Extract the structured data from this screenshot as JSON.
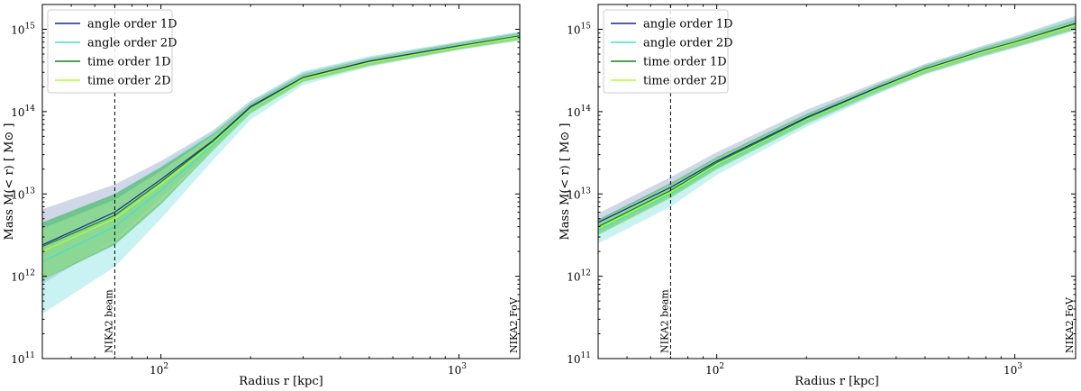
{
  "chart_data": [
    {
      "type": "line",
      "scale": {
        "x": "log",
        "y": "log"
      },
      "xlabel": "Radius r [kpc]",
      "ylabel": "Mass M(< r) [ M⊙ ]",
      "xlim": [
        40,
        1600
      ],
      "ylim": [
        100000000000.0,
        2000000000000000.0
      ],
      "x_ticks": [
        {
          "value": 100,
          "base": "10",
          "exp": "2"
        },
        {
          "value": 1000,
          "base": "10",
          "exp": "3"
        }
      ],
      "y_ticks": [
        {
          "value": 100000000000.0,
          "base": "10",
          "exp": "11"
        },
        {
          "value": 1000000000000.0,
          "base": "10",
          "exp": "12"
        },
        {
          "value": 10000000000000.0,
          "base": "10",
          "exp": "13"
        },
        {
          "value": 100000000000000.0,
          "base": "10",
          "exp": "14"
        },
        {
          "value": 1000000000000000.0,
          "base": "10",
          "exp": "15"
        }
      ],
      "legend": "top-left",
      "grid": false,
      "vlines": [
        {
          "x": 70,
          "label": "NIKA2 beam",
          "style": "dashed"
        },
        {
          "x": 1600,
          "label": "NIKA2 FoV",
          "style": "solid"
        }
      ],
      "series": [
        {
          "name": "angle order 1D",
          "color": "#1f1fa3",
          "band_color": "#8fa0c8",
          "x": [
            40,
            70,
            100,
            150,
            200,
            300,
            500,
            1000,
            1600
          ],
          "y": [
            2400000000000.0,
            6000000000000.0,
            15000000000000.0,
            45000000000000.0,
            115000000000000.0,
            260000000000000.0,
            410000000000000.0,
            630000000000000.0,
            830000000000000.0
          ],
          "upper": [
            6500000000000.0,
            13000000000000.0,
            25000000000000.0,
            60000000000000.0,
            135000000000000.0,
            300000000000000.0,
            460000000000000.0,
            700000000000000.0,
            930000000000000.0
          ],
          "lower": [
            800000000000.0,
            2800000000000.0,
            9000000000000.0,
            35000000000000.0,
            95000000000000.0,
            230000000000000.0,
            370000000000000.0,
            570000000000000.0,
            740000000000000.0
          ]
        },
        {
          "name": "angle order 2D",
          "color": "#40e0d0",
          "band_color": "#7fe0e0",
          "x": [
            40,
            70,
            100,
            150,
            200,
            300,
            500,
            1000,
            1600
          ],
          "y": [
            1500000000000.0,
            4000000000000.0,
            11000000000000.0,
            40000000000000.0,
            105000000000000.0,
            250000000000000.0,
            400000000000000.0,
            620000000000000.0,
            820000000000000.0
          ],
          "upper": [
            4500000000000.0,
            10000000000000.0,
            22000000000000.0,
            58000000000000.0,
            135000000000000.0,
            310000000000000.0,
            470000000000000.0,
            710000000000000.0,
            940000000000000.0
          ],
          "lower": [
            350000000000.0,
            1300000000000.0,
            5000000000000.0,
            26000000000000.0,
            80000000000000.0,
            210000000000000.0,
            350000000000000.0,
            560000000000000.0,
            720000000000000.0
          ]
        },
        {
          "name": "time order 1D",
          "color": "#1a7f1a",
          "band_color": "#3cb04a",
          "x": [
            40,
            70,
            100,
            150,
            200,
            300,
            500,
            1000,
            1600
          ],
          "y": [
            2300000000000.0,
            5500000000000.0,
            14000000000000.0,
            44000000000000.0,
            110000000000000.0,
            255000000000000.0,
            400000000000000.0,
            620000000000000.0,
            820000000000000.0
          ],
          "upper": [
            4500000000000.0,
            10000000000000.0,
            21000000000000.0,
            54000000000000.0,
            125000000000000.0,
            285000000000000.0,
            440000000000000.0,
            680000000000000.0,
            900000000000000.0
          ],
          "lower": [
            900000000000.0,
            2400000000000.0,
            7500000000000.0,
            34000000000000.0,
            95000000000000.0,
            230000000000000.0,
            360000000000000.0,
            570000000000000.0,
            750000000000000.0
          ]
        },
        {
          "name": "time order 2D",
          "color": "#adff2f",
          "band_color": "#b8f09a",
          "x": [
            40,
            70,
            100,
            150,
            200,
            300,
            500,
            1000,
            1600
          ],
          "y": [
            2000000000000.0,
            5000000000000.0,
            13000000000000.0,
            42000000000000.0,
            108000000000000.0,
            250000000000000.0,
            395000000000000.0,
            610000000000000.0,
            810000000000000.0
          ],
          "upper": [
            3800000000000.0,
            8500000000000.0,
            19000000000000.0,
            52000000000000.0,
            122000000000000.0,
            280000000000000.0,
            435000000000000.0,
            670000000000000.0,
            890000000000000.0
          ],
          "lower": [
            900000000000.0,
            2600000000000.0,
            8000000000000.0,
            34000000000000.0,
            94000000000000.0,
            225000000000000.0,
            355000000000000.0,
            560000000000000.0,
            730000000000000.0
          ]
        }
      ]
    },
    {
      "type": "line",
      "scale": {
        "x": "log",
        "y": "log"
      },
      "xlabel": "Radius r [kpc]",
      "ylabel": "Mass M(< r) [ M⊙ ]",
      "xlim": [
        40,
        1600
      ],
      "ylim": [
        100000000000.0,
        2000000000000000.0
      ],
      "x_ticks": [
        {
          "value": 100,
          "base": "10",
          "exp": "2"
        },
        {
          "value": 1000,
          "base": "10",
          "exp": "3"
        }
      ],
      "y_ticks": [
        {
          "value": 100000000000.0,
          "base": "10",
          "exp": "11"
        },
        {
          "value": 1000000000000.0,
          "base": "10",
          "exp": "12"
        },
        {
          "value": 10000000000000.0,
          "base": "10",
          "exp": "13"
        },
        {
          "value": 100000000000000.0,
          "base": "10",
          "exp": "14"
        },
        {
          "value": 1000000000000000.0,
          "base": "10",
          "exp": "15"
        }
      ],
      "legend": "top-left",
      "grid": false,
      "vlines": [
        {
          "x": 70,
          "label": "NIKA2 beam",
          "style": "dashed"
        },
        {
          "x": 1600,
          "label": "NIKA2 FoV",
          "style": "solid"
        }
      ],
      "series": [
        {
          "name": "angle order 1D",
          "color": "#1f1fa3",
          "band_color": "#8fa0c8",
          "x": [
            40,
            70,
            100,
            200,
            350,
            500,
            800,
            1000,
            1600
          ],
          "y": [
            4500000000000.0,
            12000000000000.0,
            25000000000000.0,
            85000000000000.0,
            200000000000000.0,
            330000000000000.0,
            560000000000000.0,
            700000000000000.0,
            1180000000000000.0
          ],
          "upper": [
            5800000000000.0,
            16000000000000.0,
            32000000000000.0,
            105000000000000.0,
            230000000000000.0,
            380000000000000.0,
            650000000000000.0,
            820000000000000.0,
            1450000000000000.0
          ],
          "lower": [
            3200000000000.0,
            9000000000000.0,
            20000000000000.0,
            70000000000000.0,
            170000000000000.0,
            290000000000000.0,
            480000000000000.0,
            600000000000000.0,
            980000000000000.0
          ]
        },
        {
          "name": "angle order 2D",
          "color": "#40e0d0",
          "band_color": "#7fe0e0",
          "x": [
            40,
            70,
            100,
            200,
            350,
            500,
            800,
            1000,
            1600
          ],
          "y": [
            3600000000000.0,
            10000000000000.0,
            22000000000000.0,
            78000000000000.0,
            190000000000000.0,
            320000000000000.0,
            550000000000000.0,
            690000000000000.0,
            1150000000000000.0
          ],
          "upper": [
            4800000000000.0,
            13500000000000.0,
            28000000000000.0,
            95000000000000.0,
            220000000000000.0,
            370000000000000.0,
            630000000000000.0,
            800000000000000.0,
            1400000000000000.0
          ],
          "lower": [
            2500000000000.0,
            7000000000000.0,
            17000000000000.0,
            65000000000000.0,
            165000000000000.0,
            280000000000000.0,
            470000000000000.0,
            590000000000000.0,
            960000000000000.0
          ]
        },
        {
          "name": "time order 1D",
          "color": "#1a7f1a",
          "band_color": "#3cb04a",
          "x": [
            40,
            70,
            100,
            200,
            350,
            500,
            800,
            1000,
            1600
          ],
          "y": [
            4000000000000.0,
            11000000000000.0,
            24000000000000.0,
            82000000000000.0,
            195000000000000.0,
            325000000000000.0,
            550000000000000.0,
            690000000000000.0,
            1150000000000000.0
          ],
          "upper": [
            4900000000000.0,
            13500000000000.0,
            28000000000000.0,
            93000000000000.0,
            215000000000000.0,
            360000000000000.0,
            610000000000000.0,
            770000000000000.0,
            1300000000000000.0
          ],
          "lower": [
            3200000000000.0,
            9000000000000.0,
            20000000000000.0,
            72000000000000.0,
            175000000000000.0,
            290000000000000.0,
            490000000000000.0,
            610000000000000.0,
            1000000000000000.0
          ]
        },
        {
          "name": "time order 2D",
          "color": "#adff2f",
          "band_color": "#b8f09a",
          "x": [
            40,
            70,
            100,
            200,
            350,
            500,
            800,
            1000,
            1600
          ],
          "y": [
            3800000000000.0,
            10500000000000.0,
            23000000000000.0,
            80000000000000.0,
            192000000000000.0,
            320000000000000.0,
            545000000000000.0,
            680000000000000.0,
            1130000000000000.0
          ],
          "upper": [
            4600000000000.0,
            13000000000000.0,
            27000000000000.0,
            90000000000000.0,
            210000000000000.0,
            350000000000000.0,
            600000000000000.0,
            760000000000000.0,
            1280000000000000.0
          ],
          "lower": [
            3100000000000.0,
            8700000000000.0,
            19500000000000.0,
            71000000000000.0,
            172000000000000.0,
            285000000000000.0,
            485000000000000.0,
            600000000000000.0,
            990000000000000.0
          ]
        }
      ]
    }
  ]
}
